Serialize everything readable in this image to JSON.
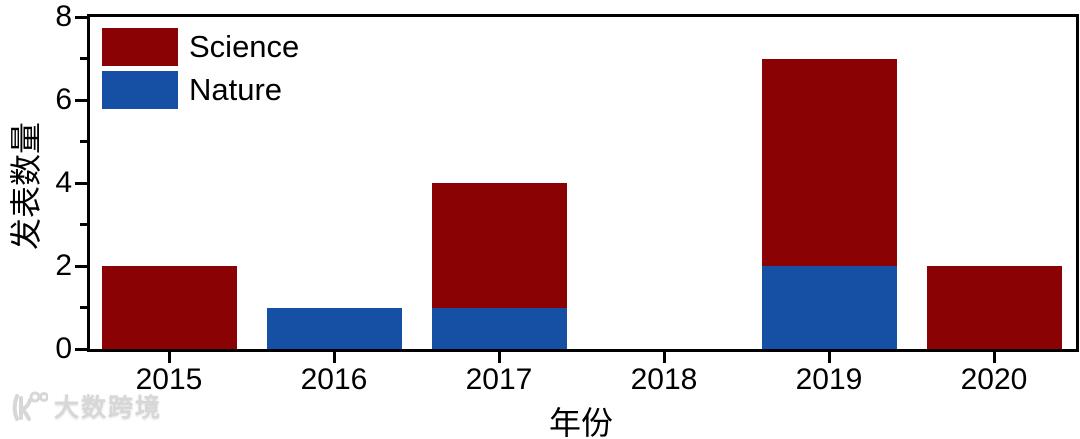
{
  "chart_data": {
    "type": "bar",
    "stacked": true,
    "title": "",
    "xlabel": "年份",
    "ylabel": "发表数量",
    "categories": [
      "2015",
      "2016",
      "2017",
      "2018",
      "2019",
      "2020"
    ],
    "series": [
      {
        "name": "Science",
        "color": "#8b0205",
        "values": [
          2,
          0,
          3,
          0,
          5,
          2
        ]
      },
      {
        "name": "Nature",
        "color": "#1550a4",
        "values": [
          0,
          1,
          1,
          0,
          2,
          0
        ]
      }
    ],
    "stack_order_bottom_to_top": [
      "Nature",
      "Science"
    ],
    "totals": [
      2,
      1,
      4,
      0,
      7,
      2
    ],
    "ylim": [
      0,
      8
    ],
    "y_major_ticks": [
      0,
      2,
      4,
      6,
      8
    ],
    "y_minor_ticks": [
      1,
      3,
      5,
      7
    ],
    "grid": "off",
    "legend_position": "top-left-inside",
    "frame": "full-box"
  },
  "colors": {
    "science": "#8b0205",
    "nature": "#1550a4",
    "axis": "#000000",
    "background": "#ffffff",
    "watermark": "#d7d7d7"
  },
  "watermark": {
    "logo": "big-data-100-logo",
    "text": "大数跨境"
  }
}
